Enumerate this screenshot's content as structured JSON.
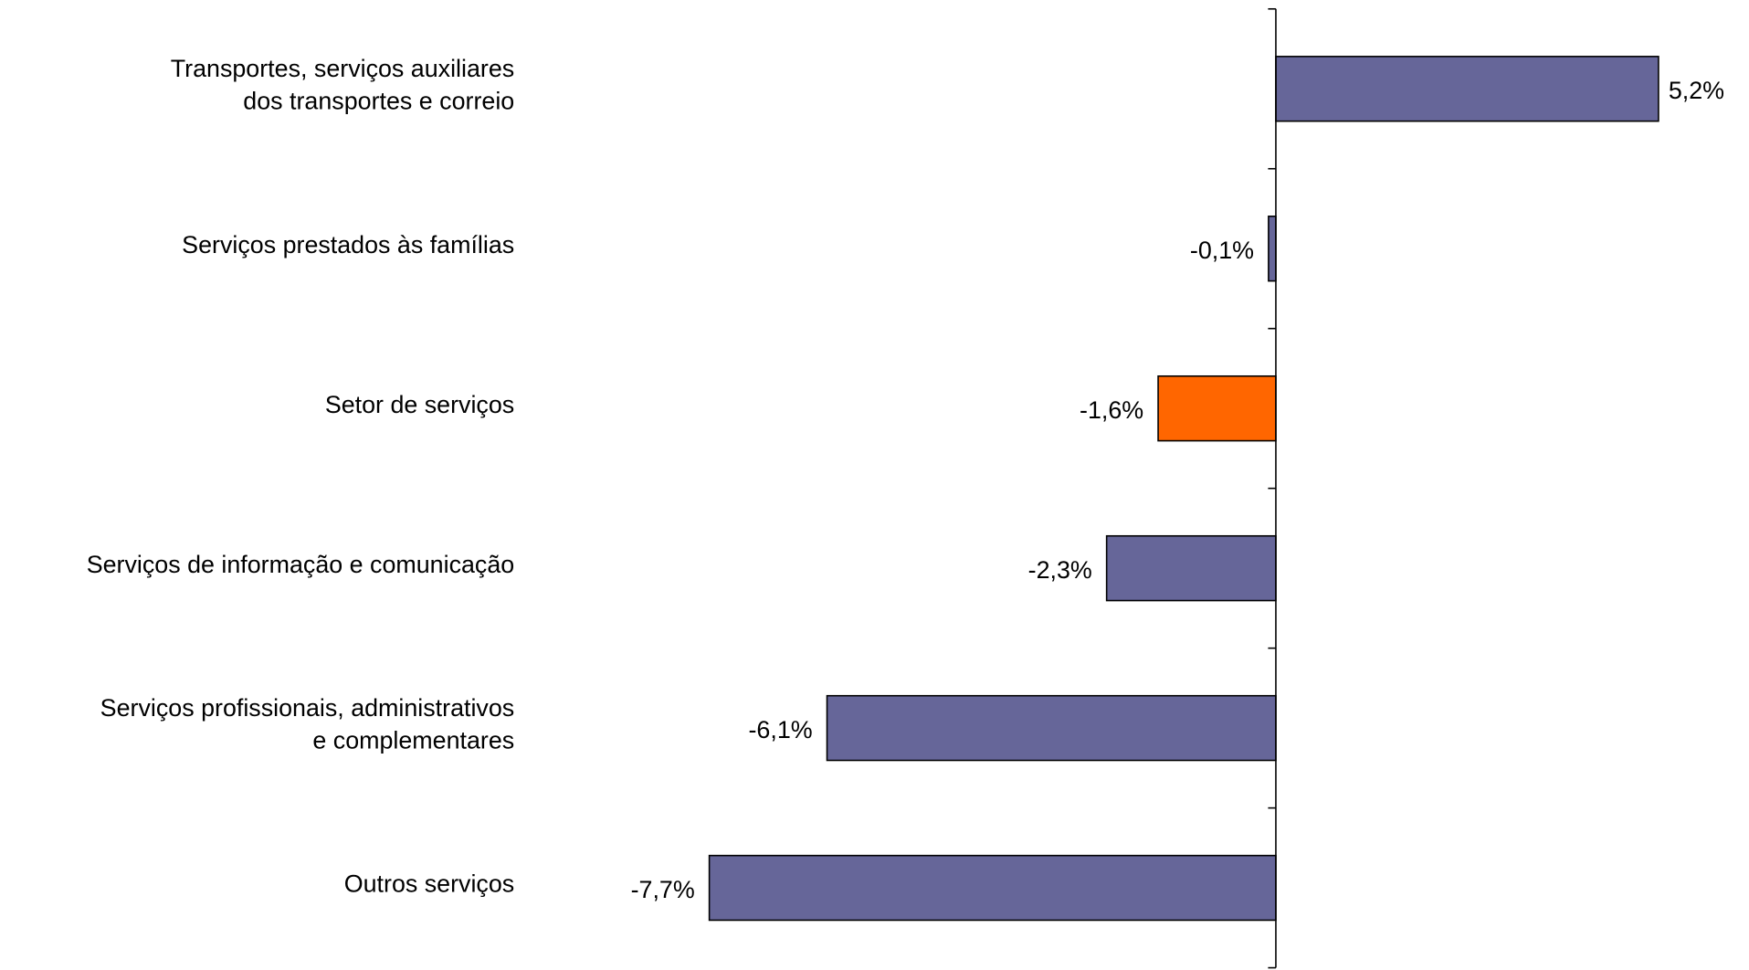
{
  "chart_data": {
    "type": "hbar",
    "categories": [
      [
        "Transportes, serviços auxiliares",
        "dos transportes e correio"
      ],
      [
        "Serviços prestados às famílias"
      ],
      [
        "Setor de serviços"
      ],
      [
        "Serviços de informação e comunicação"
      ],
      [
        "Serviços profissionais, administrativos",
        "e complementares"
      ],
      [
        "Outros serviços"
      ]
    ],
    "values": [
      5.2,
      -0.1,
      -1.6,
      -2.3,
      -6.1,
      -7.7
    ],
    "value_labels": [
      "5,2%",
      "-0,1%",
      "-1,6%",
      "-2,3%",
      "-6,1%",
      "-7,7%"
    ],
    "colors": [
      "#666699",
      "#666699",
      "#ff6600",
      "#666699",
      "#666699",
      "#666699"
    ],
    "xlim": [
      -10,
      6
    ]
  }
}
